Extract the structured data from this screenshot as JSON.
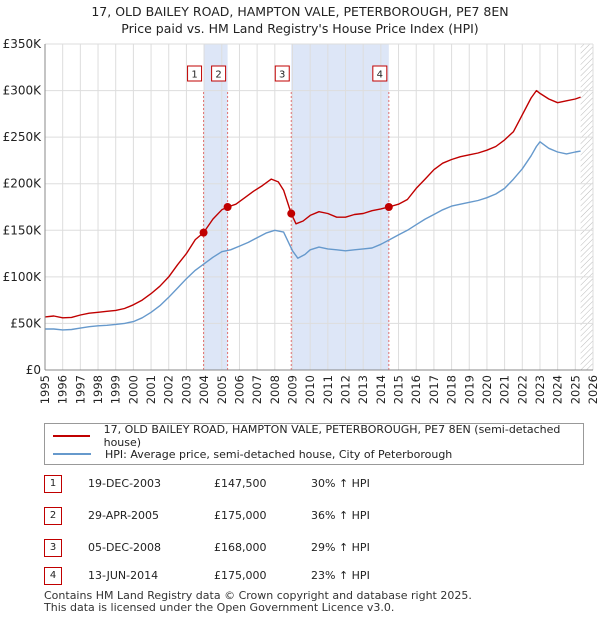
{
  "title_line1": "17, OLD BAILEY ROAD, HAMPTON VALE, PETERBOROUGH, PE7 8EN",
  "title_line2": "Price paid vs. HM Land Registry's House Price Index (HPI)",
  "colors": {
    "property": "#c00000",
    "hpi": "#6699cc",
    "shade": "#dde6f7",
    "grid": "#dddddd"
  },
  "legend": {
    "property_label": "17, OLD BAILEY ROAD, HAMPTON VALE, PETERBOROUGH, PE7 8EN (semi-detached house)",
    "hpi_label": "HPI: Average price, semi-detached house, City of Peterborough"
  },
  "sales": [
    {
      "num": "1",
      "date": "19-DEC-2003",
      "price": "£147,500",
      "hpi": "30% ↑ HPI"
    },
    {
      "num": "2",
      "date": "29-APR-2005",
      "price": "£175,000",
      "hpi": "36% ↑ HPI"
    },
    {
      "num": "3",
      "date": "05-DEC-2008",
      "price": "£168,000",
      "hpi": "29% ↑ HPI"
    },
    {
      "num": "4",
      "date": "13-JUN-2014",
      "price": "£175,000",
      "hpi": "23% ↑ HPI"
    }
  ],
  "footer_line1": "Contains HM Land Registry data © Crown copyright and database right 2025.",
  "footer_line2": "This data is licensed under the Open Government Licence v3.0.",
  "chart_data": {
    "type": "line",
    "title": "17, OLD BAILEY ROAD, HAMPTON VALE, PETERBOROUGH, PE7 8EN",
    "subtitle": "Price paid vs. HM Land Registry's House Price Index (HPI)",
    "xlim": [
      1995,
      2026
    ],
    "ylim": [
      0,
      350000
    ],
    "x_ticks": [
      "1995",
      "1996",
      "1997",
      "1998",
      "1999",
      "2000",
      "2001",
      "2002",
      "2003",
      "2004",
      "2005",
      "2006",
      "2007",
      "2008",
      "2009",
      "2010",
      "2011",
      "2012",
      "2013",
      "2014",
      "2015",
      "2016",
      "2017",
      "2018",
      "2019",
      "2020",
      "2021",
      "2022",
      "2023",
      "2024",
      "2025",
      "2026"
    ],
    "y_ticks": [
      {
        "value": 0,
        "label": "£0"
      },
      {
        "value": 50000,
        "label": "£50K"
      },
      {
        "value": 100000,
        "label": "£100K"
      },
      {
        "value": 150000,
        "label": "£150K"
      },
      {
        "value": 200000,
        "label": "£200K"
      },
      {
        "value": 250000,
        "label": "£250K"
      },
      {
        "value": 300000,
        "label": "£300K"
      },
      {
        "value": 350000,
        "label": "£350K"
      }
    ],
    "grid": true,
    "shaded_periods": [
      [
        2003.97,
        2005.33
      ],
      [
        2008.93,
        2014.45
      ]
    ],
    "future_hatch_from": 2025.3,
    "series": [
      {
        "name": "17, OLD BAILEY ROAD, HAMPTON VALE, PETERBOROUGH, PE7 8EN (semi-detached house)",
        "color": "#c00000",
        "x": [
          1995.0,
          1995.5,
          1996.0,
          1996.5,
          1997.0,
          1997.5,
          1998.0,
          1998.5,
          1999.0,
          1999.5,
          2000.0,
          2000.5,
          2001.0,
          2001.5,
          2002.0,
          2002.5,
          2003.0,
          2003.5,
          2003.97,
          2004.5,
          2005.0,
          2005.33,
          2005.8,
          2006.3,
          2006.8,
          2007.3,
          2007.8,
          2008.2,
          2008.5,
          2008.93,
          2009.2,
          2009.6,
          2010.0,
          2010.5,
          2011.0,
          2011.5,
          2012.0,
          2012.5,
          2013.0,
          2013.5,
          2014.0,
          2014.45,
          2015.0,
          2015.5,
          2016.0,
          2016.5,
          2017.0,
          2017.5,
          2018.0,
          2018.5,
          2019.0,
          2019.5,
          2020.0,
          2020.5,
          2021.0,
          2021.5,
          2022.0,
          2022.5,
          2022.8,
          2023.0,
          2023.5,
          2024.0,
          2024.5,
          2025.0,
          2025.3
        ],
        "values": [
          57000,
          58000,
          56000,
          56500,
          59000,
          61000,
          62000,
          63000,
          64000,
          66000,
          70000,
          75000,
          82000,
          90000,
          100000,
          113000,
          125000,
          140000,
          147500,
          162000,
          172000,
          175000,
          178000,
          185000,
          192000,
          198000,
          205000,
          202000,
          193000,
          168000,
          157000,
          160000,
          166000,
          170000,
          168000,
          164000,
          164000,
          167000,
          168000,
          171000,
          173000,
          175000,
          178000,
          183000,
          195000,
          205000,
          215000,
          222000,
          226000,
          229000,
          231000,
          233000,
          236000,
          240000,
          247000,
          256000,
          274000,
          292000,
          300000,
          297000,
          291000,
          287000,
          289000,
          291000,
          293000
        ]
      },
      {
        "name": "HPI: Average price, semi-detached house, City of Peterborough",
        "color": "#6699cc",
        "x": [
          1995.0,
          1995.5,
          1996.0,
          1996.5,
          1997.0,
          1997.5,
          1998.0,
          1998.5,
          1999.0,
          1999.5,
          2000.0,
          2000.5,
          2001.0,
          2001.5,
          2002.0,
          2002.5,
          2003.0,
          2003.5,
          2004.0,
          2004.5,
          2005.0,
          2005.5,
          2006.0,
          2006.5,
          2007.0,
          2007.5,
          2008.0,
          2008.5,
          2009.0,
          2009.3,
          2009.7,
          2010.0,
          2010.5,
          2011.0,
          2011.5,
          2012.0,
          2012.5,
          2013.0,
          2013.5,
          2014.0,
          2014.5,
          2015.0,
          2015.5,
          2016.0,
          2016.5,
          2017.0,
          2017.5,
          2018.0,
          2018.5,
          2019.0,
          2019.5,
          2020.0,
          2020.5,
          2021.0,
          2021.5,
          2022.0,
          2022.5,
          2022.8,
          2023.0,
          2023.5,
          2024.0,
          2024.5,
          2025.0,
          2025.3
        ],
        "values": [
          44000,
          44000,
          43000,
          43500,
          45000,
          46500,
          47500,
          48000,
          49000,
          50000,
          52000,
          56000,
          62000,
          69000,
          78000,
          88000,
          98000,
          107000,
          114000,
          121000,
          127000,
          129000,
          133000,
          137000,
          142000,
          147000,
          150000,
          148000,
          128000,
          120000,
          124000,
          129000,
          132000,
          130000,
          129000,
          128000,
          129000,
          130000,
          131000,
          135000,
          140000,
          145000,
          150000,
          156000,
          162000,
          167000,
          172000,
          176000,
          178000,
          180000,
          182000,
          185000,
          189000,
          195000,
          205000,
          216000,
          230000,
          240000,
          245000,
          238000,
          234000,
          232000,
          234000,
          235000
        ]
      }
    ],
    "sales_points": [
      {
        "label": "1",
        "x": 2003.97,
        "value": 147500
      },
      {
        "label": "2",
        "x": 2005.33,
        "value": 175000
      },
      {
        "label": "3",
        "x": 2008.93,
        "value": 168000
      },
      {
        "label": "4",
        "x": 2014.45,
        "value": 175000
      }
    ]
  }
}
